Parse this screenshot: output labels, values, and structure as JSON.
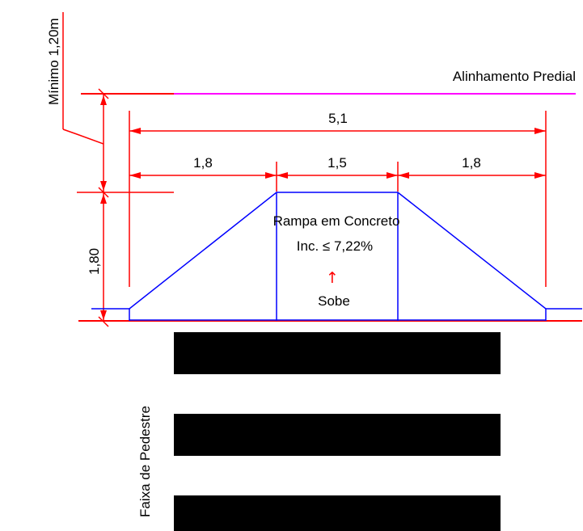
{
  "labels": {
    "property_line": "Alinhamento Predial",
    "minimum": "Mínimo 1,20m",
    "total_width": "5,1",
    "left_segment": "1,8",
    "middle_segment": "1,5",
    "right_segment": "1,8",
    "height": "1,80",
    "ramp_title": "Rampa em Concreto",
    "ramp_slope": "Inc. ≤ 7,22%",
    "direction": "Sobe",
    "crosswalk": "Faixa de Pedestre"
  },
  "arrow_glyph": "↑",
  "colors": {
    "dimension": "#ff0000",
    "ramp": "#0000ff",
    "property_line": "#ff00ff",
    "crosswalk": "#000000"
  }
}
